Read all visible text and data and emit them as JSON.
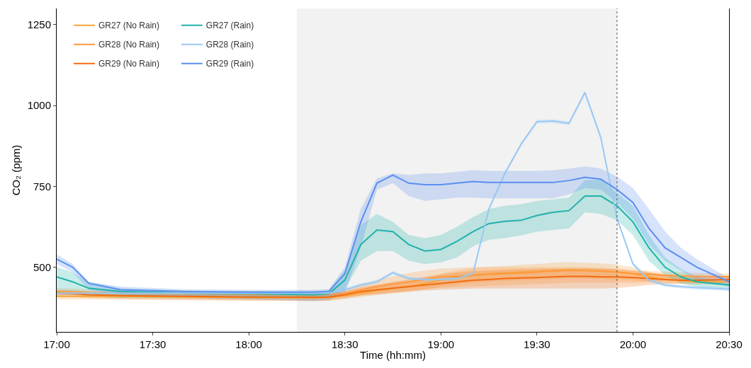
{
  "chart_data": {
    "type": "line",
    "xlabel": "Time (hh:mm)",
    "ylabel": "CO₂ (ppm)",
    "x": [
      17,
      17.083,
      17.167,
      17.333,
      17.667,
      18,
      18.333,
      18.417,
      18.5,
      18.583,
      18.667,
      18.75,
      18.833,
      18.917,
      19,
      19.083,
      19.167,
      19.25,
      19.333,
      19.417,
      19.5,
      19.583,
      19.667,
      19.75,
      19.833,
      19.917,
      20,
      20.083,
      20.167,
      20.25,
      20.333,
      20.5
    ],
    "xlim": [
      17,
      20.5
    ],
    "ylim": [
      300,
      1300
    ],
    "yticks": [
      500,
      750,
      1000,
      1250
    ],
    "xticks": [
      {
        "value": 17,
        "label": "17:00"
      },
      {
        "value": 17.5,
        "label": "17:30"
      },
      {
        "value": 18,
        "label": "18:00"
      },
      {
        "value": 18.5,
        "label": "18:30"
      },
      {
        "value": 19,
        "label": "19:00"
      },
      {
        "value": 19.5,
        "label": "19:30"
      },
      {
        "value": 20,
        "label": "20:00"
      },
      {
        "value": 20.5,
        "label": "20:30"
      }
    ],
    "grid": false,
    "legend": "top left",
    "marker": "none",
    "bands": [
      {
        "axis": "x",
        "from": 18.25,
        "to": 19.917,
        "color": "#f2f2f2"
      }
    ],
    "ref_lines": [
      {
        "axis": "x",
        "value": 19.917,
        "color": "#555555",
        "line_style": "dotted"
      }
    ],
    "series": [
      {
        "name": "GR27 (No Rain)",
        "color": "#f9a53a",
        "values": [
          410,
          410,
          410,
          410,
          408,
          406,
          405,
          406,
          412,
          420,
          428,
          435,
          440,
          450,
          460,
          468,
          475,
          480,
          482,
          485,
          487,
          490,
          492,
          490,
          488,
          485,
          480,
          470,
          462,
          458,
          455,
          455
        ],
        "lower": [
          400,
          400,
          400,
          400,
          398,
          396,
          395,
          396,
          402,
          408,
          414,
          420,
          424,
          432,
          440,
          446,
          452,
          456,
          458,
          460,
          462,
          464,
          466,
          465,
          464,
          462,
          460,
          455,
          450,
          448,
          446,
          446
        ],
        "upper": [
          420,
          420,
          420,
          420,
          418,
          416,
          415,
          416,
          422,
          432,
          442,
          450,
          456,
          468,
          480,
          490,
          498,
          502,
          504,
          508,
          510,
          514,
          516,
          514,
          512,
          508,
          500,
          485,
          474,
          468,
          464,
          464
        ]
      },
      {
        "name": "GR28 (No Rain)",
        "color": "#ff9a3c",
        "values": [
          425,
          424,
          422,
          420,
          418,
          416,
          415,
          416,
          420,
          430,
          440,
          448,
          455,
          462,
          470,
          472,
          475,
          478,
          480,
          482,
          485,
          488,
          490,
          490,
          488,
          485,
          480,
          478,
          475,
          473,
          472,
          470
        ],
        "lower": [
          415,
          414,
          412,
          410,
          408,
          406,
          405,
          406,
          408,
          414,
          420,
          424,
          428,
          432,
          436,
          438,
          440,
          442,
          444,
          446,
          448,
          450,
          452,
          452,
          452,
          452,
          452,
          455,
          458,
          460,
          460,
          460
        ],
        "upper": [
          435,
          434,
          432,
          430,
          428,
          426,
          425,
          426,
          432,
          446,
          460,
          472,
          482,
          490,
          496,
          498,
          500,
          500,
          500,
          500,
          500,
          500,
          500,
          500,
          498,
          495,
          490,
          488,
          486,
          484,
          482,
          480
        ]
      },
      {
        "name": "GR29 (No Rain)",
        "color": "#f26b10",
        "values": [
          420,
          418,
          415,
          412,
          410,
          408,
          407,
          408,
          415,
          425,
          430,
          435,
          440,
          445,
          450,
          455,
          460,
          462,
          465,
          467,
          468,
          470,
          472,
          472,
          470,
          470,
          468,
          465,
          462,
          460,
          460,
          462
        ],
        "lower": [
          410,
          408,
          405,
          402,
          400,
          398,
          397,
          398,
          404,
          412,
          416,
          420,
          424,
          428,
          430,
          432,
          434,
          434,
          434,
          434,
          434,
          434,
          434,
          434,
          434,
          436,
          440,
          445,
          448,
          450,
          450,
          452
        ],
        "upper": [
          430,
          428,
          425,
          422,
          420,
          418,
          417,
          418,
          426,
          438,
          446,
          455,
          462,
          470,
          478,
          484,
          488,
          490,
          492,
          494,
          495,
          496,
          497,
          497,
          496,
          494,
          490,
          484,
          478,
          474,
          472,
          472
        ]
      },
      {
        "name": "GR27 (Rain)",
        "color": "#20b2aa",
        "values": [
          470,
          455,
          435,
          425,
          420,
          418,
          415,
          418,
          460,
          570,
          615,
          610,
          570,
          550,
          555,
          580,
          610,
          635,
          642,
          645,
          660,
          670,
          675,
          720,
          720,
          690,
          640,
          560,
          500,
          470,
          455,
          445
        ],
        "lower": [
          430,
          420,
          410,
          405,
          405,
          403,
          402,
          405,
          430,
          520,
          550,
          550,
          520,
          510,
          515,
          530,
          565,
          585,
          590,
          598,
          610,
          615,
          620,
          670,
          665,
          645,
          600,
          520,
          475,
          450,
          440,
          430
        ],
        "upper": [
          500,
          485,
          455,
          435,
          428,
          425,
          422,
          430,
          490,
          630,
          665,
          640,
          600,
          590,
          600,
          625,
          655,
          680,
          690,
          695,
          705,
          710,
          715,
          770,
          770,
          730,
          690,
          600,
          530,
          495,
          470,
          450
        ]
      },
      {
        "name": "GR28 (Rain)",
        "color": "#99c9f5",
        "values": [
          420,
          420,
          420,
          420,
          420,
          420,
          420,
          420,
          430,
          445,
          455,
          483,
          465,
          462,
          462,
          465,
          480,
          680,
          790,
          880,
          950,
          952,
          945,
          1040,
          900,
          650,
          510,
          460,
          445,
          440,
          437,
          432
        ],
        "lower": [
          414,
          414,
          414,
          414,
          414,
          414,
          414,
          414,
          424,
          439,
          449,
          477,
          459,
          456,
          456,
          459,
          474,
          674,
          784,
          874,
          944,
          946,
          939,
          1034,
          894,
          644,
          504,
          454,
          439,
          434,
          431,
          426
        ],
        "upper": [
          426,
          426,
          426,
          426,
          426,
          426,
          426,
          426,
          436,
          451,
          461,
          489,
          471,
          468,
          468,
          471,
          486,
          686,
          796,
          886,
          956,
          958,
          951,
          1046,
          906,
          656,
          516,
          466,
          451,
          446,
          443,
          438
        ]
      },
      {
        "name": "GR29 (Rain)",
        "color": "#5b8ff0",
        "values": [
          525,
          500,
          450,
          430,
          425,
          423,
          423,
          425,
          480,
          640,
          760,
          785,
          760,
          755,
          755,
          760,
          765,
          762,
          762,
          762,
          762,
          762,
          768,
          778,
          772,
          740,
          700,
          620,
          560,
          530,
          500,
          455
        ],
        "lower": [
          510,
          485,
          430,
          415,
          405,
          400,
          395,
          398,
          420,
          560,
          740,
          760,
          720,
          705,
          710,
          715,
          715,
          713,
          713,
          713,
          713,
          713,
          725,
          745,
          740,
          700,
          650,
          570,
          520,
          490,
          460,
          440
        ],
        "upper": [
          540,
          510,
          455,
          440,
          432,
          430,
          430,
          432,
          500,
          680,
          775,
          790,
          785,
          790,
          790,
          795,
          800,
          798,
          798,
          798,
          798,
          800,
          805,
          812,
          805,
          780,
          745,
          680,
          610,
          560,
          525,
          465
        ]
      }
    ]
  }
}
